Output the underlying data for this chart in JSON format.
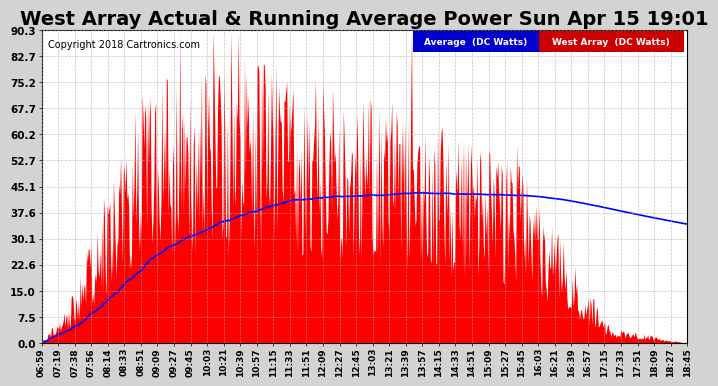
{
  "title": "West Array Actual & Running Average Power Sun Apr 15 19:01",
  "copyright": "Copyright 2018 Cartronics.com",
  "legend_blue": "Average  (DC Watts)",
  "legend_red": "West Array  (DC Watts)",
  "yticks": [
    0.0,
    7.5,
    15.0,
    22.6,
    30.1,
    37.6,
    45.1,
    52.7,
    60.2,
    67.7,
    75.2,
    82.7,
    90.3
  ],
  "ymax": 90.3,
  "ymin": 0.0,
  "background_color": "#d3d3d3",
  "plot_bg_color": "#ffffff",
  "bar_color": "#ff0000",
  "line_color": "#0000ff",
  "title_fontsize": 14,
  "xtick_labels": [
    "06:59",
    "07:19",
    "07:38",
    "07:56",
    "08:14",
    "08:33",
    "08:51",
    "09:09",
    "09:27",
    "09:45",
    "10:03",
    "10:21",
    "10:39",
    "10:57",
    "11:15",
    "11:33",
    "11:51",
    "12:09",
    "12:27",
    "12:45",
    "13:03",
    "13:21",
    "13:39",
    "13:57",
    "14:15",
    "14:33",
    "14:51",
    "15:09",
    "15:27",
    "15:45",
    "16:03",
    "16:21",
    "16:39",
    "16:57",
    "17:15",
    "17:33",
    "17:51",
    "18:09",
    "18:27",
    "18:45"
  ]
}
